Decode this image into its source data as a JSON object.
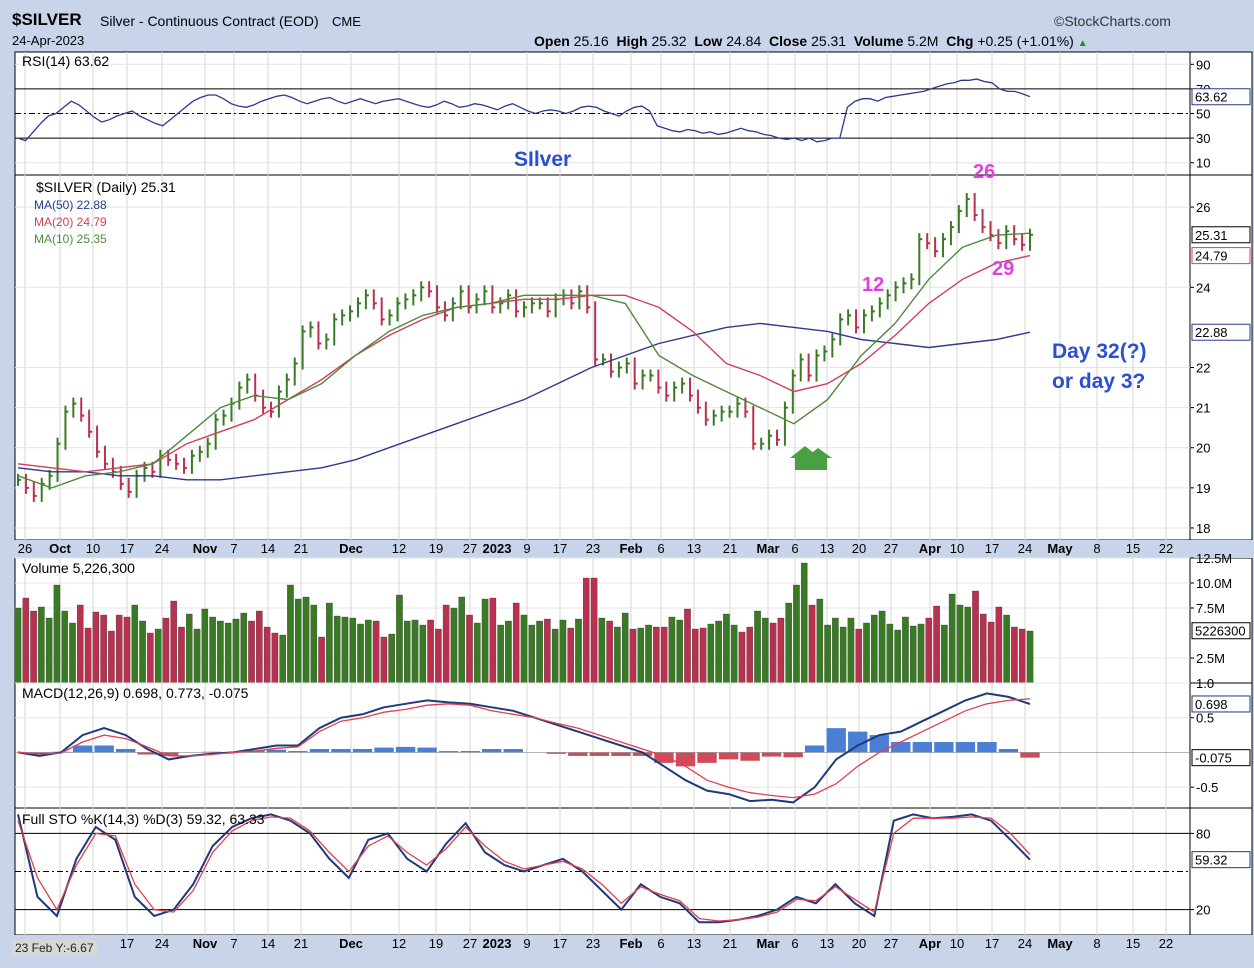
{
  "header": {
    "symbol": "$SILVER",
    "description": "Silver - Continuous Contract (EOD)",
    "exchange": "CME",
    "date": "24-Apr-2023",
    "watermark": "©StockCharts.com",
    "open_label": "Open",
    "open": "25.16",
    "high_label": "High",
    "high": "25.32",
    "low_label": "Low",
    "low": "24.84",
    "close_label": "Close",
    "close": "25.31",
    "volume_label": "Volume",
    "volume": "5.2M",
    "chg_label": "Chg",
    "chg": "+0.25 (+1.01%)"
  },
  "colors": {
    "up": "#3a7a25",
    "down": "#b8314f",
    "ma50": "#2a3b8f",
    "ma20": "#d0405a",
    "ma10": "#4f8a3a",
    "macd": "#1f3a7a",
    "signal": "#e0404f",
    "hist_pos": "#4a7fd4",
    "hist_neg": "#d04a5a",
    "annotation_blue": "#2a4fd0",
    "annotation_magenta": "#e040e0",
    "arrow": "#4aa040"
  },
  "annotations": {
    "title": "SIlver",
    "day_label_1": "Day 32(?)",
    "day_label_2": "or day 3?",
    "count_12": "12",
    "count_26": "26",
    "count_29": "29"
  },
  "x_axis": {
    "labels": [
      "26",
      "Oct",
      "10",
      "17",
      "24",
      "Nov",
      "7",
      "14",
      "21",
      "Dec",
      "12",
      "19",
      "27",
      "2023",
      "9",
      "17",
      "23",
      "Feb",
      "6",
      "13",
      "21",
      "Mar",
      "6",
      "13",
      "20",
      "27",
      "Apr",
      "10",
      "17",
      "24",
      "May",
      "8",
      "15",
      "22"
    ],
    "bottom_labels": [
      "17",
      "24",
      "Nov",
      "7",
      "14",
      "21",
      "Dec",
      "12",
      "19",
      "27",
      "2023",
      "9",
      "17",
      "23",
      "Feb",
      "6",
      "13",
      "21",
      "Mar",
      "6",
      "13",
      "20",
      "27",
      "Apr",
      "10",
      "17",
      "24",
      "May",
      "8",
      "15",
      "22"
    ]
  },
  "status_text": "23 Feb Y:-6.67",
  "chart_data": [
    {
      "type": "line",
      "panel": "rsi",
      "legend": "RSI(14) 63.62",
      "ylim": [
        0,
        100
      ],
      "y_ticks": [
        "90",
        "70",
        "50",
        "30",
        "10"
      ],
      "reference_lines": [
        70,
        50,
        30
      ],
      "current_label": "63.62",
      "series": [
        {
          "name": "RSI(14)",
          "values": [
            30,
            28,
            35,
            42,
            48,
            50,
            55,
            60,
            57,
            52,
            47,
            43,
            45,
            48,
            50,
            52,
            48,
            45,
            42,
            40,
            45,
            50,
            55,
            60,
            63,
            65,
            65,
            62,
            58,
            56,
            55,
            57,
            60,
            62,
            64,
            65,
            63,
            60,
            58,
            60,
            62,
            63,
            60,
            58,
            60,
            62,
            60,
            58,
            60,
            61,
            62,
            60,
            58,
            56,
            55,
            57,
            60,
            58,
            55,
            56,
            58,
            57,
            55,
            53,
            56,
            58,
            55,
            52,
            50,
            52,
            53,
            52,
            50,
            52,
            55,
            56,
            55,
            52,
            50,
            48,
            52,
            55,
            56,
            52,
            40,
            38,
            36,
            35,
            37,
            36,
            34,
            35,
            33,
            34,
            36,
            38,
            36,
            35,
            33,
            32,
            30,
            29,
            30,
            28,
            30,
            27,
            28,
            30,
            30,
            55,
            60,
            62,
            62,
            60,
            63,
            64,
            65,
            66,
            67,
            68,
            70,
            72,
            74,
            75,
            77,
            77,
            78,
            76,
            75,
            70,
            68,
            68,
            66,
            63.62
          ]
        }
      ]
    },
    {
      "type": "candlestick",
      "panel": "price",
      "legend": [
        "$SILVER (Daily) 25.31",
        "MA(50) 22.88",
        "MA(20) 24.79",
        "MA(10) 25.35"
      ],
      "ylim": [
        17.7,
        26.8
      ],
      "y_ticks": [
        "26",
        "24",
        "22",
        "21",
        "20",
        "19",
        "18"
      ],
      "current_labels": [
        "25.31",
        "24.79",
        "22.88"
      ],
      "x_dates": [
        "2022-09-26",
        "2022-10-03",
        "2022-10-10",
        "2022-10-17",
        "2022-10-24",
        "2022-10-31",
        "2022-11-07",
        "2022-11-14",
        "2022-11-21",
        "2022-11-28",
        "2022-12-05",
        "2022-12-12",
        "2022-12-19",
        "2022-12-27",
        "2023-01-03",
        "2023-01-09",
        "2023-01-17",
        "2023-01-23",
        "2023-01-30",
        "2023-02-06",
        "2023-02-13",
        "2023-02-21",
        "2023-02-27",
        "2023-03-06",
        "2023-03-13",
        "2023-03-20",
        "2023-03-27",
        "2023-04-03",
        "2023-04-10",
        "2023-04-17",
        "2023-04-24"
      ],
      "closes": [
        19.2,
        19.0,
        18.8,
        19.1,
        19.3,
        20.1,
        20.9,
        21.1,
        20.8,
        20.4,
        19.9,
        19.6,
        19.4,
        19.1,
        18.9,
        19.3,
        19.5,
        19.4,
        19.8,
        19.7,
        19.6,
        19.5,
        19.8,
        19.9,
        20.1,
        20.7,
        20.8,
        21.1,
        21.5,
        21.7,
        21.3,
        21.0,
        20.9,
        21.4,
        21.7,
        22.1,
        22.9,
        23.0,
        22.6,
        22.7,
        23.2,
        23.3,
        23.4,
        23.6,
        23.8,
        23.6,
        23.2,
        23.3,
        23.6,
        23.7,
        23.8,
        24.0,
        23.9,
        23.5,
        23.3,
        23.6,
        23.9,
        23.5,
        23.7,
        23.9,
        23.5,
        23.6,
        23.8,
        23.4,
        23.5,
        23.6,
        23.6,
        23.4,
        23.7,
        23.8,
        23.6,
        23.9,
        23.5,
        22.2,
        22.2,
        21.9,
        22.0,
        22.1,
        21.6,
        21.8,
        21.8,
        21.5,
        21.3,
        21.5,
        21.6,
        21.3,
        21.0,
        20.7,
        20.8,
        20.9,
        20.9,
        21.1,
        20.9,
        20.1,
        20.1,
        20.3,
        20.2,
        21.0,
        21.8,
        22.2,
        21.8,
        22.3,
        22.4,
        22.7,
        23.2,
        23.3,
        23.0,
        23.3,
        23.4,
        23.6,
        23.8,
        24.0,
        24.1,
        24.2,
        25.2,
        25.1,
        24.9,
        25.2,
        25.5,
        25.9,
        26.2,
        25.8,
        25.5,
        25.3,
        25.1,
        25.4,
        25.2,
        25.06,
        25.31
      ],
      "series": [
        {
          "name": "MA(50)",
          "values": [
            19.5,
            19.4,
            19.4,
            19.3,
            19.3,
            19.2,
            19.2,
            19.3,
            19.4,
            19.5,
            19.7,
            20.0,
            20.3,
            20.6,
            20.9,
            21.2,
            21.6,
            22.0,
            22.3,
            22.6,
            22.8,
            23.0,
            23.1,
            23.0,
            22.9,
            22.7,
            22.6,
            22.5,
            22.6,
            22.7,
            22.88
          ]
        },
        {
          "name": "MA(20)",
          "values": [
            19.6,
            19.5,
            19.4,
            19.5,
            19.6,
            20.1,
            20.4,
            20.7,
            21.2,
            21.7,
            22.3,
            22.8,
            23.2,
            23.5,
            23.6,
            23.7,
            23.7,
            23.8,
            23.8,
            23.5,
            22.9,
            22.1,
            21.8,
            21.4,
            21.6,
            22.1,
            22.8,
            23.6,
            24.2,
            24.6,
            24.79
          ]
        },
        {
          "name": "MA(10)",
          "values": [
            19.3,
            19.0,
            19.3,
            19.4,
            19.6,
            20.3,
            21.0,
            21.3,
            21.2,
            21.6,
            22.3,
            22.9,
            23.3,
            23.5,
            23.6,
            23.8,
            23.8,
            23.8,
            23.6,
            22.3,
            21.8,
            21.4,
            21.0,
            20.6,
            21.2,
            22.3,
            23.1,
            24.2,
            25.0,
            25.3,
            25.35
          ]
        }
      ]
    },
    {
      "type": "bar",
      "panel": "volume",
      "legend": "Volume 5,226,300",
      "ylim": [
        0,
        12500000
      ],
      "y_ticks": [
        "12.5M",
        "10.0M",
        "7.5M",
        "2.5M"
      ],
      "current_label": "5226300",
      "values": [
        7.5,
        8.5,
        7.2,
        7.6,
        6.5,
        9.8,
        7.2,
        6.0,
        7.8,
        5.5,
        7.1,
        6.8,
        5.2,
        6.8,
        6.6,
        7.8,
        6.2,
        5.0,
        5.4,
        6.5,
        8.2,
        5.6,
        6.9,
        5.4,
        7.4,
        6.6,
        6.2,
        6.0,
        6.4,
        7.0,
        6.2,
        7.2,
        5.6,
        5.0,
        4.8,
        9.8,
        8.4,
        8.6,
        7.8,
        4.6,
        8.0,
        6.7,
        6.6,
        6.5,
        5.9,
        6.3,
        6.2,
        4.6,
        4.9,
        8.8,
        6.2,
        6.3,
        5.8,
        6.3,
        5.4,
        7.8,
        7.5,
        8.6,
        6.8,
        6.0,
        8.4,
        8.5,
        5.8,
        6.2,
        8.0,
        6.8,
        5.8,
        6.2,
        6.4,
        5.4,
        6.3,
        5.5,
        6.4,
        10.5,
        10.5,
        6.5,
        6.2,
        5.6,
        7.0,
        5.4,
        5.5,
        5.8,
        5.6,
        5.6,
        6.6,
        6.3,
        7.4,
        5.4,
        5.5,
        5.9,
        6.2,
        6.9,
        5.8,
        5.1,
        5.6,
        7.2,
        6.5,
        6.0,
        6.5,
        8.0,
        9.8,
        12.0,
        7.8,
        8.4,
        5.8,
        6.5,
        5.6,
        6.5,
        5.4,
        6.0,
        6.8,
        7.2,
        5.9,
        5.3,
        6.6,
        5.7,
        5.9,
        6.5,
        7.7,
        5.8,
        8.9,
        7.8,
        7.6,
        9.2,
        6.9,
        6.1,
        7.6,
        6.8,
        5.6,
        5.4,
        5.2
      ],
      "units": "millions"
    },
    {
      "type": "line",
      "panel": "macd",
      "legend": "MACD(12,26,9) 0.698, 0.773, -0.075",
      "ylim": [
        -0.8,
        1.0
      ],
      "y_ticks": [
        "1.0",
        "0.5",
        "-0.5"
      ],
      "current_labels": [
        "0.773",
        "0.698",
        "-0.075"
      ],
      "series": [
        {
          "name": "MACD",
          "values": [
            0.0,
            -0.05,
            0.0,
            0.25,
            0.35,
            0.25,
            0.05,
            -0.1,
            -0.05,
            -0.02,
            0.0,
            0.05,
            0.1,
            0.1,
            0.35,
            0.5,
            0.55,
            0.65,
            0.7,
            0.75,
            0.72,
            0.7,
            0.65,
            0.6,
            0.5,
            0.4,
            0.3,
            0.2,
            0.1,
            0.0,
            -0.2,
            -0.4,
            -0.55,
            -0.6,
            -0.7,
            -0.68,
            -0.72,
            -0.5,
            -0.1,
            0.1,
            0.25,
            0.3,
            0.45,
            0.6,
            0.75,
            0.85,
            0.8,
            0.698
          ]
        },
        {
          "name": "Signal",
          "values": [
            0.0,
            -0.02,
            -0.01,
            0.15,
            0.25,
            0.2,
            0.08,
            -0.05,
            -0.05,
            -0.03,
            0.0,
            0.02,
            0.06,
            0.08,
            0.3,
            0.45,
            0.5,
            0.58,
            0.62,
            0.68,
            0.7,
            0.68,
            0.6,
            0.55,
            0.5,
            0.42,
            0.35,
            0.25,
            0.15,
            0.05,
            -0.05,
            -0.2,
            -0.4,
            -0.5,
            -0.58,
            -0.62,
            -0.65,
            -0.6,
            -0.45,
            -0.2,
            0.0,
            0.15,
            0.3,
            0.45,
            0.6,
            0.7,
            0.75,
            0.773
          ]
        },
        {
          "name": "Histogram",
          "values": [
            0.0,
            -0.03,
            0.01,
            0.1,
            0.1,
            0.05,
            -0.03,
            -0.05,
            0.0,
            0.01,
            0.0,
            0.03,
            0.04,
            0.02,
            0.05,
            0.05,
            0.05,
            0.07,
            0.08,
            0.07,
            0.02,
            0.02,
            0.05,
            0.05,
            0.0,
            -0.02,
            -0.05,
            -0.05,
            -0.05,
            -0.05,
            -0.15,
            -0.2,
            -0.15,
            -0.1,
            -0.12,
            -0.06,
            -0.07,
            0.1,
            0.35,
            0.3,
            0.25,
            0.15,
            0.15,
            0.15,
            0.15,
            0.15,
            0.05,
            -0.075
          ]
        }
      ]
    },
    {
      "type": "line",
      "panel": "stochastics",
      "legend": "Full STO %K(14,3) %D(3) 59.32, 63.33",
      "ylim": [
        0,
        100
      ],
      "y_ticks": [
        "80",
        "20"
      ],
      "reference_lines": [
        80,
        50,
        20
      ],
      "current_labels": [
        "63.33",
        "59.32"
      ],
      "series": [
        {
          "name": "%K",
          "values": [
            95,
            30,
            15,
            60,
            85,
            75,
            30,
            15,
            20,
            40,
            70,
            85,
            92,
            95,
            90,
            80,
            60,
            45,
            75,
            80,
            60,
            50,
            72,
            88,
            65,
            55,
            50,
            55,
            60,
            50,
            35,
            20,
            40,
            30,
            25,
            10,
            10,
            12,
            15,
            20,
            30,
            25,
            40,
            25,
            15,
            90,
            95,
            92,
            93,
            95,
            90,
            75,
            59.32
          ]
        },
        {
          "name": "%D",
          "values": [
            90,
            45,
            20,
            55,
            80,
            78,
            40,
            20,
            18,
            35,
            65,
            82,
            90,
            93,
            92,
            82,
            65,
            50,
            70,
            78,
            65,
            55,
            68,
            85,
            70,
            58,
            52,
            55,
            58,
            52,
            40,
            25,
            38,
            32,
            27,
            13,
            11,
            12,
            14,
            18,
            28,
            27,
            38,
            28,
            18,
            80,
            92,
            92,
            92,
            93,
            92,
            80,
            63.33
          ]
        }
      ]
    }
  ]
}
